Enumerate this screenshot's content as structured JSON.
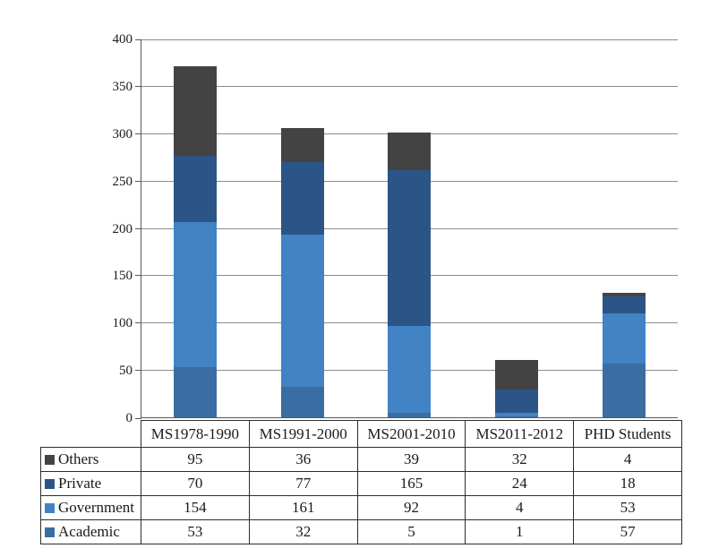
{
  "chart_data": {
    "type": "bar",
    "stacked": true,
    "title": "",
    "xlabel": "",
    "ylabel": "",
    "categories": [
      "MS1978-1990",
      "MS1991-2000",
      "MS2001-2010",
      "MS2011-2012",
      "PHD Students"
    ],
    "series": [
      {
        "name": "Others",
        "color": "#434343",
        "values": [
          95,
          36,
          39,
          32,
          4
        ]
      },
      {
        "name": "Private",
        "color": "#2B5586",
        "values": [
          70,
          77,
          165,
          24,
          18
        ]
      },
      {
        "name": "Government",
        "color": "#4183C4",
        "values": [
          154,
          161,
          92,
          4,
          53
        ]
      },
      {
        "name": "Academic",
        "color": "#3A6EA3",
        "values": [
          53,
          32,
          5,
          1,
          57
        ]
      }
    ],
    "stack_order_bottom_to_top": [
      "Academic",
      "Government",
      "Private",
      "Others"
    ],
    "y_ticks": [
      0,
      50,
      100,
      150,
      200,
      250,
      300,
      350,
      400
    ],
    "ylim": [
      0,
      400
    ],
    "grid": true,
    "legend_position": "table-left",
    "colors": {
      "gridline": "#8c8c8c",
      "axis": "#595959",
      "table_border": "#2e2e2e",
      "background": "#ffffff"
    }
  }
}
